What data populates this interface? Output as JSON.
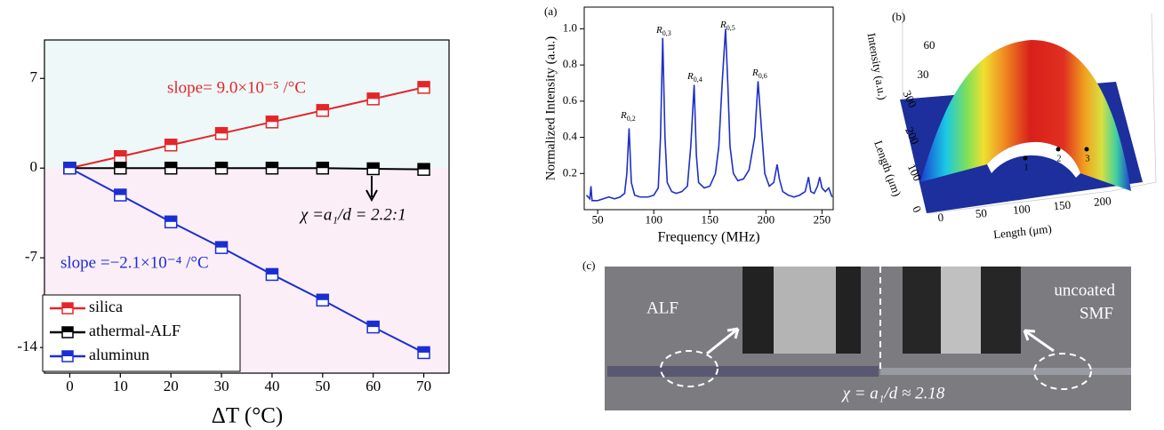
{
  "chart_data": [
    {
      "type": "line",
      "marker": "square",
      "xlabel": "ΔT (°C)",
      "x": [
        0,
        10,
        20,
        30,
        40,
        50,
        60,
        70
      ],
      "series": [
        {
          "name": "silica",
          "color": "#e3262a",
          "values": [
            0,
            0.9,
            1.8,
            2.7,
            3.6,
            4.5,
            5.4,
            6.3
          ]
        },
        {
          "name": "athermal-ALF",
          "color": "#000000",
          "values": [
            0,
            0,
            0,
            0,
            0,
            0,
            -0.05,
            -0.1
          ]
        },
        {
          "name": "aluminun",
          "color": "#1b2ed3",
          "values": [
            0,
            -2.1,
            -4.2,
            -6.2,
            -8.3,
            -10.3,
            -12.4,
            -14.4
          ]
        }
      ],
      "annotations": [
        "slope= 9.0×10⁻⁵ /°C",
        "χ =a₁/d = 2.2:1",
        "slope =−2.1×10⁻⁴ /°C"
      ],
      "xlim": [
        -5,
        75
      ],
      "xticks": [
        0,
        10,
        20,
        30,
        40,
        50,
        60,
        70
      ],
      "ylim": [
        -16,
        10
      ],
      "yticks": [
        -14,
        -7,
        0,
        7
      ],
      "legend": "lower left"
    },
    {
      "type": "line",
      "panel_label": "(a)",
      "color": "#1f2fc8",
      "xlabel": "Frequency (MHz)",
      "ylabel": "Normalized Intensity (a.u.)",
      "x": [
        40,
        43,
        44,
        45,
        50,
        55,
        60,
        65,
        70,
        74,
        76,
        78,
        80,
        83,
        88,
        95,
        100,
        104,
        106,
        108,
        110,
        112,
        116,
        120,
        125,
        130,
        133,
        136,
        138,
        140,
        145,
        150,
        155,
        158,
        161,
        164,
        166,
        168,
        171,
        175,
        180,
        185,
        190,
        193,
        196,
        199,
        203,
        207,
        210,
        212,
        215,
        220,
        225,
        230,
        235,
        238,
        240,
        243,
        246,
        248,
        250,
        253,
        256,
        259
      ],
      "values": [
        0.08,
        0.06,
        0.13,
        0.05,
        0.05,
        0.06,
        0.07,
        0.06,
        0.07,
        0.09,
        0.2,
        0.45,
        0.15,
        0.08,
        0.07,
        0.07,
        0.08,
        0.12,
        0.4,
        0.95,
        0.4,
        0.15,
        0.1,
        0.09,
        0.1,
        0.13,
        0.35,
        0.69,
        0.3,
        0.15,
        0.12,
        0.13,
        0.2,
        0.35,
        0.7,
        1.0,
        0.7,
        0.35,
        0.2,
        0.16,
        0.17,
        0.22,
        0.4,
        0.71,
        0.45,
        0.2,
        0.13,
        0.15,
        0.25,
        0.17,
        0.1,
        0.08,
        0.07,
        0.08,
        0.1,
        0.18,
        0.1,
        0.09,
        0.13,
        0.18,
        0.12,
        0.1,
        0.12,
        0.07
      ],
      "peak_labels": [
        {
          "main": "R",
          "sub": "0,2"
        },
        {
          "main": "R",
          "sub": "0,3"
        },
        {
          "main": "R",
          "sub": "0,4"
        },
        {
          "main": "R",
          "sub": "0,5"
        },
        {
          "main": "R",
          "sub": "0,6"
        }
      ],
      "xlim": [
        38,
        260
      ],
      "xticks": [
        50,
        100,
        150,
        200,
        250
      ],
      "ylim": [
        0,
        1.12
      ],
      "yticks": [
        0.2,
        0.4,
        0.6,
        0.8,
        {
          "value": 1,
          "label": "1.0"
        }
      ]
    },
    {
      "type": "surface",
      "panel_label": "(b)",
      "zlabel": "Intensity (a.u.)",
      "ylabel": "Length (μm)",
      "xlabel": "Length (μm)",
      "zticks": [
        30,
        60
      ],
      "yticks": [
        0,
        100,
        200,
        300
      ],
      "xticks": [
        0,
        50,
        100,
        150,
        200
      ],
      "points": [
        "1",
        "2",
        "3"
      ]
    }
  ],
  "panel_c": {
    "label": "(c)",
    "left_text": "ALF",
    "right_text": [
      "uncoated",
      "SMF"
    ],
    "ratio": "χ = a₁/d ≈ 2.18"
  }
}
